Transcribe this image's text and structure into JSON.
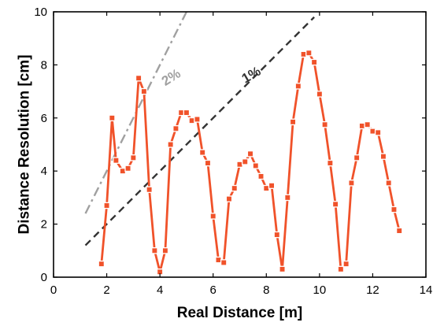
{
  "chart_data": {
    "type": "line",
    "xlabel": "Real Distance [m]",
    "ylabel": "Distance Resolution [cm]",
    "xlim": [
      0,
      14
    ],
    "ylim": [
      0,
      10
    ],
    "xticks": [
      "0",
      "2",
      "4",
      "6",
      "8",
      "10",
      "12",
      "14"
    ],
    "yticks": [
      "0",
      "2",
      "4",
      "6",
      "8",
      "10"
    ],
    "grid": false,
    "series": [
      {
        "color": "#f0522a",
        "marker": "square",
        "x": [
          1.8,
          2.0,
          2.2,
          2.35,
          2.6,
          2.8,
          3.0,
          3.2,
          3.4,
          3.6,
          3.8,
          4.0,
          4.2,
          4.4,
          4.6,
          4.8,
          5.0,
          5.2,
          5.4,
          5.6,
          5.8,
          6.0,
          6.2,
          6.4,
          6.6,
          6.8,
          7.0,
          7.2,
          7.4,
          7.6,
          7.8,
          8.0,
          8.2,
          8.4,
          8.6,
          8.8,
          9.0,
          9.2,
          9.4,
          9.6,
          9.8,
          10.0,
          10.2,
          10.4,
          10.6,
          10.8,
          11.0,
          11.2,
          11.4,
          11.6,
          11.8,
          12.0,
          12.2,
          12.4,
          12.6,
          12.8,
          13.0
        ],
        "y": [
          0.5,
          2.7,
          6.0,
          4.4,
          4.0,
          4.1,
          4.5,
          7.5,
          7.0,
          3.3,
          1.0,
          0.2,
          1.0,
          5.0,
          5.6,
          6.2,
          6.2,
          5.9,
          5.95,
          4.7,
          4.3,
          2.3,
          0.65,
          0.55,
          2.95,
          3.35,
          4.25,
          4.35,
          4.65,
          4.2,
          3.8,
          3.35,
          3.45,
          1.6,
          0.3,
          3.0,
          5.85,
          7.2,
          8.4,
          8.45,
          8.1,
          6.9,
          5.75,
          4.3,
          2.75,
          0.3,
          0.5,
          3.55,
          4.5,
          5.7,
          5.75,
          5.5,
          5.45,
          4.55,
          3.55,
          2.55,
          1.75
        ]
      }
    ],
    "reference_lines": [
      {
        "label": "2%",
        "color": "#a0a0a0",
        "style": "dash-dot",
        "x": [
          1.2,
          5.0
        ],
        "y": [
          2.4,
          10.0
        ]
      },
      {
        "label": "1%",
        "color": "#333333",
        "style": "dashed",
        "x": [
          1.2,
          9.8
        ],
        "y": [
          1.2,
          9.8
        ]
      }
    ]
  }
}
